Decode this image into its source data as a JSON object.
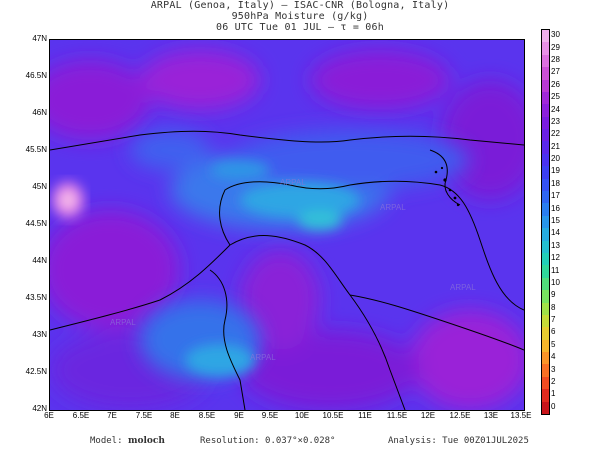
{
  "header": {
    "line1": "ARPAL (Genoa, Italy)  –  ISAC-CNR (Bologna, Italy)",
    "line2": "950hPa Moisture (g/kg)",
    "line3": "06 UTC Tue 01 JUL  –  τ = 06h"
  },
  "map": {
    "lat_labels": [
      "47N",
      "46.5N",
      "46N",
      "45.5N",
      "45N",
      "44.5N",
      "44N",
      "43.5N",
      "43N",
      "42.5N",
      "42N"
    ],
    "lon_labels": [
      "6E",
      "6.5E",
      "7E",
      "7.5E",
      "8E",
      "8.5E",
      "9E",
      "9.5E",
      "10E",
      "10.5E",
      "11E",
      "11.5E",
      "12E",
      "12.5E",
      "13E",
      "13.5E"
    ],
    "watermark": "ARPAL",
    "field_colors": {
      "low": "#7a1fd6",
      "mid": "#4b3af0",
      "high": "#2f8ee8",
      "peak": "#f6c6ec"
    }
  },
  "colorbar": {
    "ticks": [
      "30",
      "29",
      "28",
      "27",
      "26",
      "25",
      "24",
      "23",
      "22",
      "21",
      "20",
      "19",
      "18",
      "17",
      "16",
      "15",
      "14",
      "13",
      "12",
      "11",
      "10",
      "9",
      "8",
      "7",
      "6",
      "5",
      "4",
      "3",
      "2",
      "1",
      "0"
    ],
    "colors": [
      "#f0b0ec",
      "#e890e6",
      "#dc70de",
      "#cc50d6",
      "#b838d4",
      "#a028d8",
      "#8c20dc",
      "#7a1ce0",
      "#6a20e4",
      "#5a28ea",
      "#4a32f0",
      "#3c40f2",
      "#3452f4",
      "#2e66f2",
      "#2a7ef0",
      "#2896ea",
      "#26ace0",
      "#24c0d0",
      "#22d0b8",
      "#30d89a",
      "#50de7c",
      "#78e260",
      "#a0e048",
      "#c6da38",
      "#e6cc30",
      "#f6b42c",
      "#fa9428",
      "#f87024",
      "#f04c22",
      "#e02a1e",
      "#c8141a"
    ]
  },
  "footer": {
    "model_label": "Model:",
    "model_name": "moloch",
    "resolution": "Resolution: 0.037°×0.028°",
    "analysis": "Analysis: Tue 00Z01JUL2025"
  }
}
